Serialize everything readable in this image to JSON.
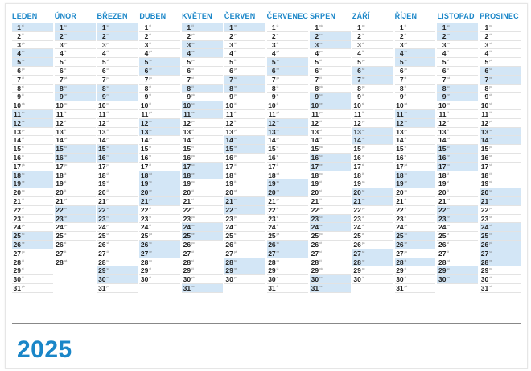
{
  "year": "2025",
  "months": [
    {
      "name": "LEDEN",
      "start": 2,
      "days": 31,
      "hol": [
        1
      ]
    },
    {
      "name": "ÚNOR",
      "start": 5,
      "days": 28,
      "hol": []
    },
    {
      "name": "BŘEZEN",
      "start": 5,
      "days": 31,
      "hol": []
    },
    {
      "name": "DUBEN",
      "start": 1,
      "days": 30,
      "hol": [
        18,
        21
      ]
    },
    {
      "name": "KVĚTEN",
      "start": 3,
      "days": 31,
      "hol": [
        1,
        8
      ]
    },
    {
      "name": "ČERVEN",
      "start": 6,
      "days": 30,
      "hol": []
    },
    {
      "name": "ČERVENEC",
      "start": 1,
      "days": 31,
      "hol": [
        5,
        6
      ]
    },
    {
      "name": "SRPEN",
      "start": 4,
      "days": 31,
      "hol": []
    },
    {
      "name": "ZÁŘÍ",
      "start": 0,
      "days": 30,
      "hol": [
        28
      ]
    },
    {
      "name": "ŘÍJEN",
      "start": 2,
      "days": 31,
      "hol": [
        28
      ]
    },
    {
      "name": "LISTOPAD",
      "start": 5,
      "days": 30,
      "hol": [
        17
      ]
    },
    {
      "name": "PROSINEC",
      "start": 0,
      "days": 31,
      "hol": [
        24,
        25,
        26
      ]
    }
  ],
  "weekday_abbr": [
    "po",
    "út",
    "st",
    "čt",
    "pá",
    "so",
    "ne"
  ]
}
